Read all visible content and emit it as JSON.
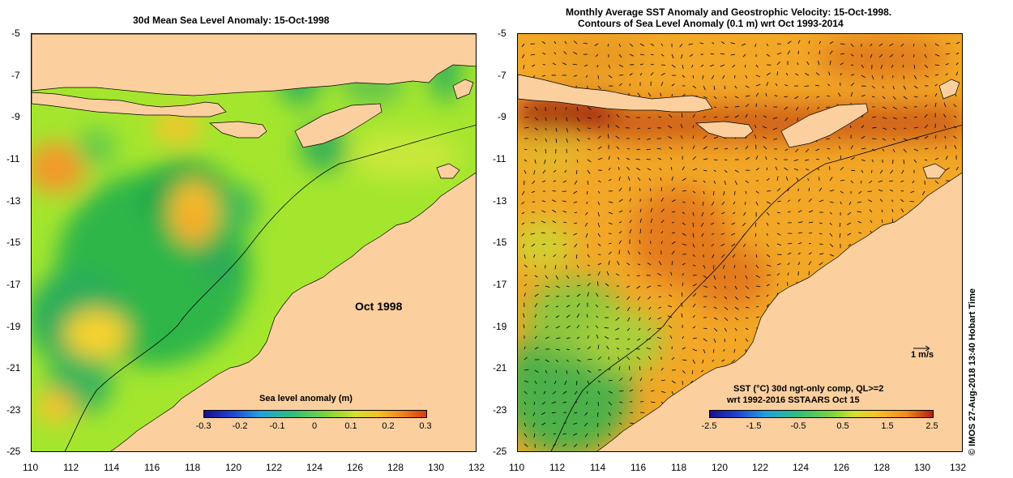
{
  "left_panel": {
    "title": "30d Mean Sea Level Anomaly: 15-Oct-1998",
    "overlay_label": "Oct 1998",
    "colorbar": {
      "title": "Sea level anomaly (m)",
      "ticks": [
        "-0.3",
        "-0.2",
        "-0.1",
        "0",
        "0.1",
        "0.2",
        "0.3"
      ]
    }
  },
  "right_panel": {
    "title_line1": "Monthly Average SST Anomaly  and Geostrophic Velocity: 15-Oct-1998.",
    "title_line2": "Contours of Sea Level Anomaly (0.1 m) wrt Oct 1993-2014",
    "colorbar": {
      "title_line1": "SST (°C) 30d ngt-only comp, QL>=2",
      "title_line2": "wrt 1992-2016 SSTAARS Oct 15",
      "ticks": [
        "-2.5",
        "-1.5",
        "-0.5",
        "0.5",
        "1.5",
        "2.5"
      ]
    },
    "scale_arrow_label": "1 m/s"
  },
  "axes": {
    "lat_ticks": [
      "-5",
      "-7",
      "-9",
      "-11",
      "-13",
      "-15",
      "-17",
      "-19",
      "-21",
      "-23",
      "-25"
    ],
    "lon_ticks": [
      "110",
      "112",
      "114",
      "116",
      "118",
      "120",
      "122",
      "124",
      "126",
      "128",
      "130",
      "132"
    ]
  },
  "credit": "© IMOS 27-Aug-2018 13:40 Hobart Time",
  "colors": {
    "land": "#fccf9f",
    "coast": "#000000",
    "sla_base": "#a4e62e",
    "sst_base": "#f2a727"
  }
}
